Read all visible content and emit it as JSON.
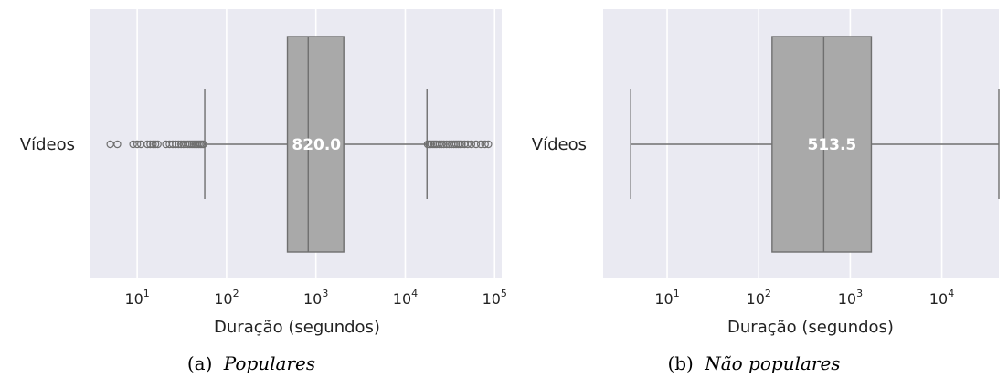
{
  "chart_data": [
    {
      "type": "box",
      "caption_prefix": "(a)",
      "caption_title": "Populares",
      "category": "Vídeos",
      "xlabel": "Duração (segundos)",
      "xscale": "log",
      "xlim": [
        3,
        120000
      ],
      "ticks": [
        {
          "base": "10",
          "exp": "1",
          "value": 10
        },
        {
          "base": "10",
          "exp": "2",
          "value": 100
        },
        {
          "base": "10",
          "exp": "3",
          "value": 1000
        },
        {
          "base": "10",
          "exp": "4",
          "value": 10000
        },
        {
          "base": "10",
          "exp": "5",
          "value": 100000
        }
      ],
      "grid": true,
      "box": {
        "q1": 480,
        "median": 820,
        "q3": 2050,
        "whisker_low": 57,
        "whisker_high": 17500
      },
      "median_label": "820.0",
      "outliers": [
        5,
        6,
        9,
        10,
        11,
        13,
        14,
        15,
        16,
        17,
        21,
        23,
        25,
        27,
        29,
        31,
        33,
        35,
        37,
        39,
        41,
        43,
        45,
        47,
        49,
        51,
        53,
        55,
        17800,
        18500,
        19500,
        20500,
        21500,
        22500,
        24000,
        25500,
        27000,
        29000,
        31000,
        33000,
        35000,
        37000,
        39000,
        41000,
        43000,
        46000,
        50000,
        55000,
        62000,
        70000,
        78000,
        85000
      ]
    },
    {
      "type": "box",
      "caption_prefix": "(b)",
      "caption_title": "Não populares",
      "category": "Vídeos",
      "xlabel": "Duração (segundos)",
      "xscale": "log",
      "xlim": [
        2,
        42000
      ],
      "ticks": [
        {
          "base": "10",
          "exp": "1",
          "value": 10
        },
        {
          "base": "10",
          "exp": "2",
          "value": 100
        },
        {
          "base": "10",
          "exp": "3",
          "value": 1000
        },
        {
          "base": "10",
          "exp": "4",
          "value": 10000
        }
      ],
      "grid": true,
      "box": {
        "q1": 140,
        "median": 513.5,
        "q3": 1700,
        "whisker_low": 4,
        "whisker_high": 42000
      },
      "median_label": "513.5",
      "outliers": []
    }
  ],
  "colors": {
    "plot_bg": "#eaeaf2",
    "grid": "#ffffff",
    "box_fill": "#a9a9a9",
    "box_line": "#6f6f6f",
    "outlier_stroke": "#6f6f6f",
    "median_text": "#ffffff"
  }
}
